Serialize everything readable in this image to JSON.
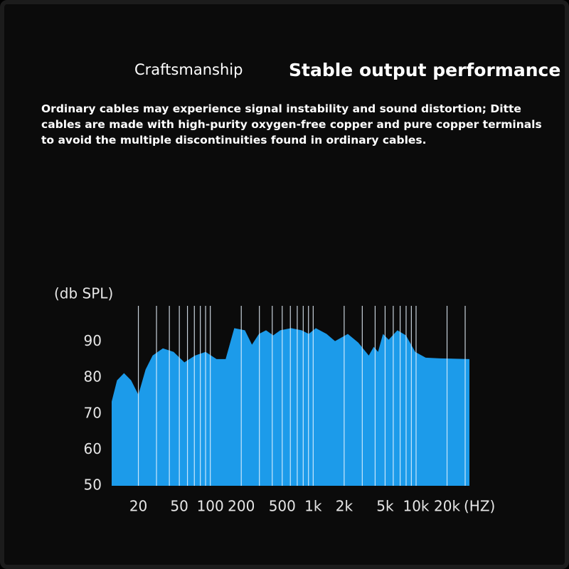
{
  "header": {
    "label": "Craftsmanship",
    "title": "Stable output performance",
    "description": "Ordinary cables may experience signal instability and sound distortion; Ditte cables are made with high-purity oxygen-free copper and pure copper terminals to avoid the multiple discontinuities found in ordinary cables."
  },
  "chart_data": {
    "type": "area",
    "y_label": "(db SPL)",
    "x_label": "(HZ)",
    "x_scale": "log",
    "x": [
      11,
      12.4,
      14.5,
      17,
      20,
      23.5,
      27.5,
      34.6,
      44,
      56,
      71,
      90,
      115,
      141,
      171,
      217,
      254,
      297,
      348,
      409,
      479,
      610,
      772,
      905,
      1060,
      1350,
      1630,
      2170,
      2740,
      3470,
      3880,
      4270,
      4770,
      5420,
      6580,
      7970,
      9800,
      12400,
      17100,
      33000
    ],
    "series": [
      {
        "name": "SPL",
        "color": "#1c9bea",
        "values": [
          73.4,
          79.3,
          81.3,
          79.3,
          75.3,
          82.3,
          86.2,
          88.2,
          87.2,
          84.3,
          86.2,
          87.2,
          85.2,
          85.2,
          93.8,
          93.2,
          89.2,
          92.2,
          93.2,
          91.8,
          93.2,
          93.8,
          93.2,
          92.2,
          93.8,
          92.2,
          90.2,
          92.2,
          89.8,
          86.2,
          88.6,
          87.2,
          92.2,
          90.6,
          93.2,
          91.8,
          87.2,
          85.6,
          85.4,
          85.2
        ]
      }
    ],
    "xlim": [
      11,
      33000
    ],
    "xticks": [
      20,
      50,
      100,
      200,
      500,
      {
        "value": 1000,
        "label": "1k"
      },
      {
        "value": 2000,
        "label": "2k"
      },
      {
        "value": 5000,
        "label": "5k"
      },
      {
        "value": 10000,
        "label": "10k"
      },
      {
        "value": 20000,
        "label": "20k"
      }
    ],
    "xminorticks": [
      30,
      40,
      60,
      70,
      80,
      90,
      300,
      400,
      600,
      700,
      800,
      900,
      3000,
      4000,
      6000,
      7000,
      8000,
      9000,
      30000
    ],
    "ylim": [
      50,
      100
    ],
    "yticks": [
      50,
      60,
      70,
      80,
      90
    ],
    "grid": true,
    "grid_color": "#e8f4ff"
  }
}
